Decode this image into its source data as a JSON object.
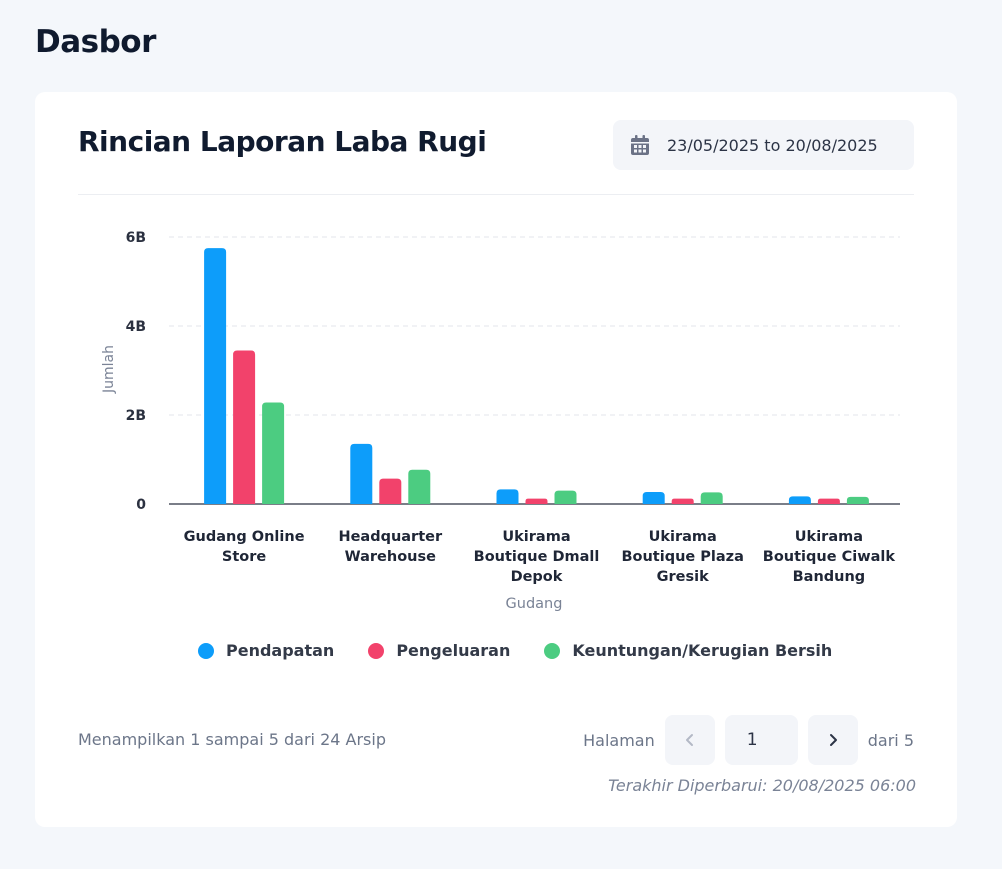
{
  "page": {
    "title": "Dasbor"
  },
  "card": {
    "title": "Rincian Laporan Laba Rugi",
    "date_range": "23/05/2025 to 20/08/2025"
  },
  "chart_data": {
    "type": "bar",
    "categories": [
      [
        "Gudang Online",
        "Store"
      ],
      [
        "Headquarter",
        "Warehouse"
      ],
      [
        "Ukirama",
        "Boutique Dmall",
        "Depok"
      ],
      [
        "Ukirama",
        "Boutique Plaza",
        "Gresik"
      ],
      [
        "Ukirama",
        "Boutique Ciwalk",
        "Bandung"
      ]
    ],
    "series": [
      {
        "name": "Pendapatan",
        "color": "#0d9dfa",
        "values": [
          5.75,
          1.35,
          0.33,
          0.27,
          0.17
        ]
      },
      {
        "name": "Pengeluaran",
        "color": "#f2426b",
        "values": [
          3.45,
          0.57,
          0.12,
          0.12,
          0.12
        ]
      },
      {
        "name": "Keuntungan/Kerugian Bersih",
        "color": "#4ccc81",
        "values": [
          2.28,
          0.77,
          0.3,
          0.26,
          0.16
        ]
      }
    ],
    "yticks": [
      {
        "value": 0,
        "label": "0"
      },
      {
        "value": 2,
        "label": "2B"
      },
      {
        "value": 4,
        "label": "4B"
      },
      {
        "value": 6,
        "label": "6B"
      }
    ],
    "ylim": [
      0,
      6
    ],
    "unit_note": "values in billions",
    "xlabel": "Gudang",
    "ylabel": "Jumlah",
    "grid": true,
    "legend_position": "bottom"
  },
  "footer": {
    "info": "Menampilkan 1 sampai 5 dari 24 Arsip",
    "page_label": "Halaman",
    "current_page": "1",
    "total_label": "dari 5",
    "updated": "Terakhir Diperbarui: 20/08/2025 06:00"
  }
}
